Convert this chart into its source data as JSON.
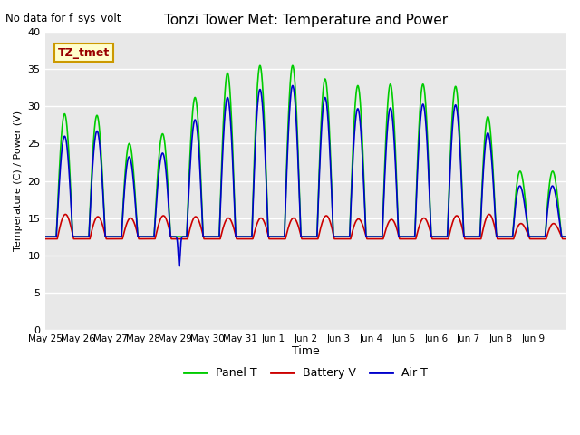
{
  "title": "Tonzi Tower Met: Temperature and Power",
  "topleft_text": "No data for f_sys_volt",
  "ylabel": "Temperature (C) / Power (V)",
  "xlabel": "Time",
  "legend_label": "TZ_tmet",
  "ylim": [
    0,
    40
  ],
  "yticks": [
    0,
    5,
    10,
    15,
    20,
    25,
    30,
    35,
    40
  ],
  "xtick_labels": [
    "May 25",
    "May 26",
    "May 27",
    "May 28",
    "May 29",
    "May 30",
    "May 31",
    "Jun 1",
    "Jun 2",
    "Jun 3",
    "Jun 4",
    "Jun 5",
    "Jun 6",
    "Jun 7",
    "Jun 8",
    "Jun 9"
  ],
  "panel_color": "#00cc00",
  "battery_color": "#cc0000",
  "air_color": "#0000cc",
  "panel_label": "Panel T",
  "battery_label": "Battery V",
  "air_label": "Air T",
  "bg_color": "#e8e8e8",
  "fig_color": "#ffffff",
  "line_width": 1.2,
  "legend_box_facecolor": "#ffffcc",
  "legend_box_edgecolor": "#cc9900",
  "legend_text_color": "#990000"
}
